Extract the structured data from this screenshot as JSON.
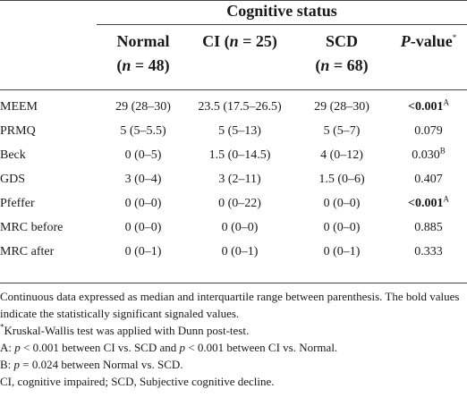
{
  "header": {
    "group_title": "Cognitive status",
    "columns": [
      {
        "line1_pre": "Normal",
        "line2": "(n = 48)"
      },
      {
        "line1_pre": "CI (",
        "line1_n": "n",
        "line1_post": " = 25)"
      },
      {
        "line1_pre": "SCD",
        "line2": "(n = 68)"
      },
      {
        "line1_italic": "P",
        "line1_post": "-value",
        "line1_sup": "*"
      }
    ]
  },
  "rows": [
    {
      "label": "MEEM",
      "normal": "29 (28–30)",
      "ci": "23.5 (17.5–26.5)",
      "scd": "29 (28–30)",
      "p": "<0.001",
      "p_bold": true,
      "p_sup": "A"
    },
    {
      "label": "PRMQ",
      "normal": "5 (5–5.5)",
      "ci": "5 (5–13)",
      "scd": "5 (5–7)",
      "p": "0.079",
      "p_bold": false,
      "p_sup": ""
    },
    {
      "label": "Beck",
      "normal": "0 (0–5)",
      "ci": "1.5 (0–14.5)",
      "scd": "4 (0–12)",
      "p": "0.030",
      "p_bold": false,
      "p_sup": "B"
    },
    {
      "label": "GDS",
      "normal": "3 (0–4)",
      "ci": "3 (2–11)",
      "scd": "1.5 (0–6)",
      "p": "0.407",
      "p_bold": false,
      "p_sup": ""
    },
    {
      "label": "Pfeffer",
      "normal": "0 (0–0)",
      "ci": "0 (0–22)",
      "scd": "0 (0–0)",
      "p": "<0.001",
      "p_bold": true,
      "p_sup": "A"
    },
    {
      "label": "MRC before",
      "normal": "0 (0–0)",
      "ci": "0 (0–0)",
      "scd": "0 (0–0)",
      "p": "0.885",
      "p_bold": false,
      "p_sup": ""
    },
    {
      "label": "MRC after",
      "normal": "0 (0–1)",
      "ci": "0 (0–1)",
      "scd": "0 (0–1)",
      "p": "0.333",
      "p_bold": false,
      "p_sup": ""
    }
  ],
  "notes": {
    "line1": "Continuous data expressed as median and interquartile range between parenthesis. The bold values indicate the statistically significant signaled values.",
    "line2_sup": "*",
    "line2": "Kruskal-Wallis test was applied with Dunn post-test.",
    "line3_a": "A: ",
    "line3_b": " < 0.001 between CI vs. SCD and ",
    "line3_c": " < 0.001 between CI vs. Normal.",
    "line4_a": "B: ",
    "line4_b": " = 0.024 between Normal vs. SCD.",
    "line5": "CI, cognitive impaired; SCD, Subjective cognitive decline.",
    "p_letter": "p"
  }
}
